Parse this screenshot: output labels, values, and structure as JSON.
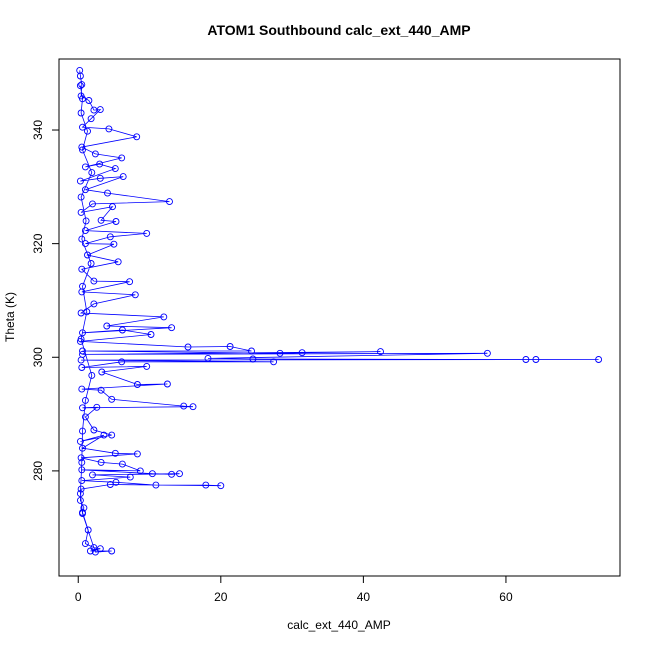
{
  "chart_data": {
    "type": "line",
    "title": "ATOM1 Southbound calc_ext_440_AMP",
    "xlabel": "calc_ext_440_AMP",
    "ylabel": "Theta (K)",
    "xlim": [
      -2.7,
      76
    ],
    "ylim": [
      261.5,
      352.5
    ],
    "xticks": [
      0,
      20,
      40,
      60
    ],
    "yticks": [
      280,
      300,
      320,
      340
    ],
    "grid": false,
    "legend": "none",
    "series": [
      {
        "color": "#0000ff",
        "marker": "open-circle",
        "points": [
          [
            0.2,
            350.5
          ],
          [
            0.3,
            349.5
          ],
          [
            0.5,
            348
          ],
          [
            0.4,
            346
          ],
          [
            1.5,
            345.2
          ],
          [
            2.2,
            343.5
          ],
          [
            3.1,
            343.6
          ],
          [
            1.8,
            342
          ],
          [
            0.6,
            340.5
          ],
          [
            4.3,
            340.2
          ],
          [
            8.2,
            338.8
          ],
          [
            0.5,
            337
          ],
          [
            2.4,
            335.8
          ],
          [
            6.1,
            335.1
          ],
          [
            1.0,
            333.5
          ],
          [
            3.0,
            334.0
          ],
          [
            5.2,
            333.2
          ],
          [
            0.3,
            331
          ],
          [
            3.1,
            331.5
          ],
          [
            6.3,
            331.8
          ],
          [
            1.0,
            329.5
          ],
          [
            4.1,
            328.9
          ],
          [
            12.8,
            327.4
          ],
          [
            2.0,
            327.0
          ],
          [
            0.4,
            325.5
          ],
          [
            4.8,
            326.5
          ],
          [
            3.2,
            324.1
          ],
          [
            5.3,
            323.9
          ],
          [
            1.0,
            322.3
          ],
          [
            9.6,
            321.8
          ],
          [
            4.5,
            321.2
          ],
          [
            1.0,
            320.0
          ],
          [
            5.0,
            319.9
          ],
          [
            1.3,
            318.0
          ],
          [
            5.6,
            316.8
          ],
          [
            0.5,
            315.5
          ],
          [
            2.2,
            313.4
          ],
          [
            7.2,
            313.3
          ],
          [
            0.5,
            311.5
          ],
          [
            8.0,
            311.0
          ],
          [
            2.2,
            309.4
          ],
          [
            0.4,
            307.8
          ],
          [
            12.0,
            307.1
          ],
          [
            4.0,
            305.5
          ],
          [
            13.1,
            305.2
          ],
          [
            0.6,
            304.3
          ],
          [
            6.2,
            304.8
          ],
          [
            10.2,
            304.0
          ],
          [
            0.3,
            302.8
          ],
          [
            15.4,
            301.8
          ],
          [
            21.3,
            301.9
          ],
          [
            24.3,
            301.1
          ],
          [
            0.6,
            301.1
          ],
          [
            28.3,
            300.7
          ],
          [
            31.4,
            300.8
          ],
          [
            42.4,
            301.0
          ],
          [
            0.6,
            300.5
          ],
          [
            57.4,
            300.7
          ],
          [
            18.2,
            299.8
          ],
          [
            24.5,
            299.7
          ],
          [
            62.8,
            299.6
          ],
          [
            64.2,
            299.6
          ],
          [
            73.0,
            299.6
          ],
          [
            0.4,
            299.5
          ],
          [
            27.4,
            299.2
          ],
          [
            6.1,
            299.2
          ],
          [
            0.5,
            298.2
          ],
          [
            9.6,
            298.4
          ],
          [
            3.3,
            297.4
          ],
          [
            8.3,
            295.2
          ],
          [
            12.5,
            295.3
          ],
          [
            0.5,
            294.4
          ],
          [
            3.2,
            294.2
          ],
          [
            4.7,
            292.6
          ],
          [
            14.8,
            291.4
          ],
          [
            16.1,
            291.3
          ],
          [
            0.6,
            291.1
          ],
          [
            2.6,
            291.2
          ],
          [
            1.0,
            289.5
          ],
          [
            2.2,
            287.2
          ],
          [
            4.7,
            286.3
          ],
          [
            0.3,
            285.2
          ],
          [
            3.6,
            286.3
          ],
          [
            0.6,
            284.0
          ],
          [
            5.2,
            283.1
          ],
          [
            8.3,
            283.0
          ],
          [
            0.4,
            282.3
          ],
          [
            3.2,
            281.5
          ],
          [
            6.2,
            281.2
          ],
          [
            8.7,
            280.0
          ],
          [
            0.5,
            280.2
          ],
          [
            10.4,
            279.5
          ],
          [
            13.1,
            279.4
          ],
          [
            14.2,
            279.5
          ],
          [
            2.0,
            279.3
          ],
          [
            7.3,
            278.9
          ],
          [
            0.5,
            278.3
          ],
          [
            5.3,
            278.0
          ],
          [
            10.9,
            277.5
          ],
          [
            17.9,
            277.5
          ],
          [
            20.0,
            277.4
          ],
          [
            4.5,
            277.6
          ],
          [
            0.4,
            276.8
          ],
          [
            0.3,
            274.8
          ],
          [
            0.8,
            273.5
          ],
          [
            0.6,
            272.7
          ],
          [
            1.4,
            269.6
          ],
          [
            1.0,
            267.2
          ],
          [
            2.2,
            266.5
          ],
          [
            3.1,
            266.3
          ],
          [
            1.7,
            265.9
          ],
          [
            4.7,
            265.9
          ],
          [
            2.4,
            265.7
          ],
          [
            0.6,
            272.5
          ],
          [
            0.3,
            276.0
          ],
          [
            0.5,
            281.5
          ],
          [
            0.6,
            287.0
          ],
          [
            1.0,
            292.4
          ],
          [
            1.9,
            296.8
          ],
          [
            0.4,
            303.2
          ],
          [
            1.2,
            308.0
          ],
          [
            0.6,
            312.5
          ],
          [
            1.8,
            316.5
          ],
          [
            0.5,
            320.8
          ],
          [
            1.1,
            324.0
          ],
          [
            0.4,
            328.2
          ],
          [
            1.9,
            332.5
          ],
          [
            0.6,
            336.5
          ],
          [
            1.3,
            339.8
          ],
          [
            0.4,
            343.0
          ],
          [
            0.6,
            345.5
          ],
          [
            0.3,
            347.8
          ]
        ]
      }
    ]
  }
}
